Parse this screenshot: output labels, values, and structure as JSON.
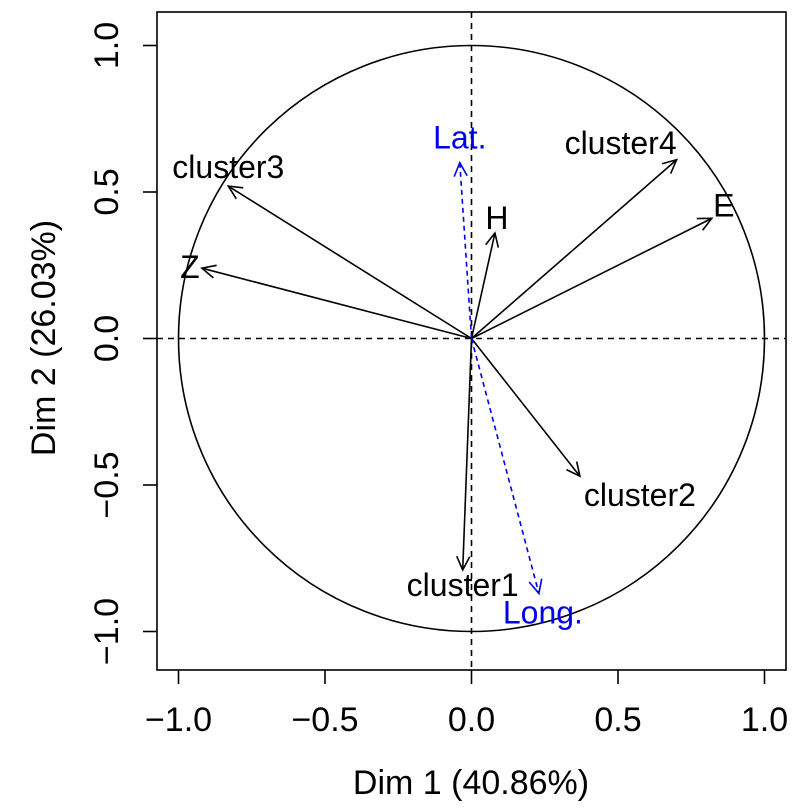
{
  "chart_data": {
    "type": "variables-factor-map",
    "xlabel": "Dim 1 (40.86%)",
    "ylabel": "Dim 2 (26.03%)",
    "xlim": [
      -1.1,
      1.1
    ],
    "ylim": [
      -1.15,
      1.15
    ],
    "xticks": [
      -1.0,
      -0.5,
      0.0,
      0.5,
      1.0
    ],
    "xtick_labels": [
      "−1.0",
      "−0.5",
      "0.0",
      "0.5",
      "1.0"
    ],
    "yticks": [
      -1.0,
      -0.5,
      0.0,
      0.5,
      1.0
    ],
    "ytick_labels": [
      "−1.0",
      "−0.5",
      "0.0",
      "0.5",
      "1.0"
    ],
    "unit_circle": true,
    "reference_lines": {
      "x": 0,
      "y": 0,
      "style": "dashed"
    },
    "colors": {
      "active": "#000000",
      "supplementary": "#0000ee"
    },
    "variables": [
      {
        "name": "cluster3",
        "x": -0.83,
        "y": 0.52,
        "type": "active"
      },
      {
        "name": "Z",
        "x": -0.92,
        "y": 0.24,
        "type": "active"
      },
      {
        "name": "H",
        "x": 0.08,
        "y": 0.36,
        "type": "active"
      },
      {
        "name": "cluster4",
        "x": 0.7,
        "y": 0.61,
        "type": "active"
      },
      {
        "name": "E",
        "x": 0.82,
        "y": 0.41,
        "type": "active"
      },
      {
        "name": "cluster2",
        "x": 0.37,
        "y": -0.47,
        "type": "active"
      },
      {
        "name": "cluster1",
        "x": -0.03,
        "y": -0.79,
        "type": "active"
      },
      {
        "name": "Lat.",
        "x": -0.04,
        "y": 0.6,
        "type": "supplementary"
      },
      {
        "name": "Long.",
        "x": 0.23,
        "y": -0.87,
        "type": "supplementary"
      }
    ]
  }
}
